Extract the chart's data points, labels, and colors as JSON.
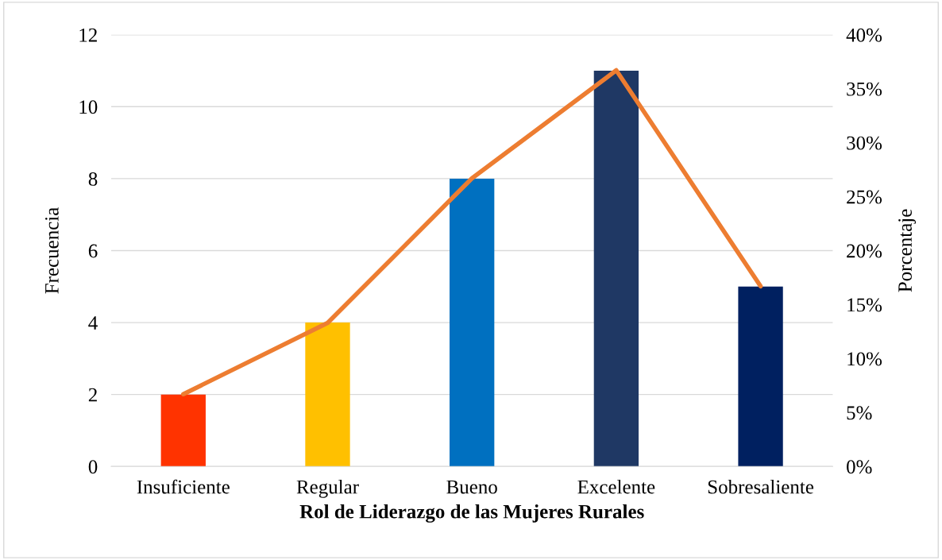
{
  "chart_data": {
    "type": "bar",
    "xlabel": "Rol de Liderazgo de las Mujeres Rurales",
    "ylabel": "Frecuencia",
    "y2label": "Porcentaje",
    "categories": [
      "Insuficiente",
      "Regular",
      "Bueno",
      "Excelente",
      "Sobresaliente"
    ],
    "series": [
      {
        "colors": [
          "#ff3300",
          "#ffc000",
          "#0070c0",
          "#1f3864",
          "#002060"
        ],
        "values": [
          2,
          4,
          8,
          11,
          5
        ]
      },
      {
        "type": "line",
        "axis": "y2",
        "color": "#ed7d31",
        "values": [
          6.7,
          13.3,
          26.7,
          36.7,
          16.7
        ]
      }
    ],
    "ylim": [
      0,
      12
    ],
    "yticks": [
      0,
      2,
      4,
      6,
      8,
      10,
      12
    ],
    "y2lim": [
      0,
      40
    ],
    "y2ticks": [
      {
        "value": 0,
        "label": "0%"
      },
      {
        "value": 5,
        "label": "5%"
      },
      {
        "value": 10,
        "label": "10%"
      },
      {
        "value": 15,
        "label": "15%"
      },
      {
        "value": 20,
        "label": "20%"
      },
      {
        "value": 25,
        "label": "25%"
      },
      {
        "value": 30,
        "label": "30%"
      },
      {
        "value": 35,
        "label": "35%"
      },
      {
        "value": 40,
        "label": "40%"
      }
    ],
    "grid": "y",
    "legend": false,
    "marker": "none",
    "line_style": "solid"
  }
}
